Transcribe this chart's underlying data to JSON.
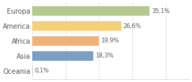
{
  "categories": [
    "Europa",
    "America",
    "Africa",
    "Asia",
    "Oceania"
  ],
  "values": [
    35.1,
    26.6,
    19.9,
    18.3,
    0.1
  ],
  "labels": [
    "35,1%",
    "26,6%",
    "19,9%",
    "18,3%",
    "0,1%"
  ],
  "bar_colors": [
    "#b5c98e",
    "#f5d07a",
    "#f0b07a",
    "#7a9fc2",
    "#cccccc"
  ],
  "background_color": "#ffffff",
  "text_color": "#555555",
  "xlim": [
    0,
    47
  ]
}
